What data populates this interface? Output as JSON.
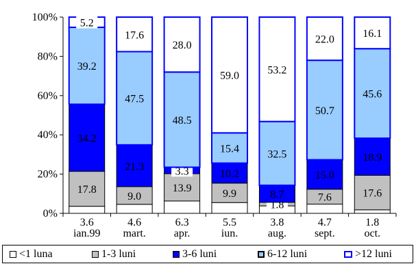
{
  "chart_data": {
    "type": "bar",
    "stacked": true,
    "percent": true,
    "title": "",
    "xlabel": "",
    "ylabel": "",
    "ylim": [
      0,
      100
    ],
    "yticks": [
      "0%",
      "20%",
      "40%",
      "60%",
      "80%",
      "100%"
    ],
    "grid": false,
    "legend_position": "bottom",
    "categories": [
      {
        "top": "3.6",
        "bottom": "ian.99"
      },
      {
        "top": "4.6",
        "bottom": "mart."
      },
      {
        "top": "6.3",
        "bottom": "apr."
      },
      {
        "top": "5.5",
        "bottom": "iun."
      },
      {
        "top": "3.8",
        "bottom": "aug."
      },
      {
        "top": "4.7",
        "bottom": "sept."
      },
      {
        "top": "1.8",
        "bottom": "oct."
      }
    ],
    "series": [
      {
        "name": "<1 luna",
        "color": "#ffffff",
        "border": "#000000",
        "values": [
          3.6,
          4.6,
          6.3,
          5.5,
          3.8,
          4.7,
          1.8
        ]
      },
      {
        "name": "1-3 luni",
        "color": "#c0c0c0",
        "border": "#000000",
        "values": [
          17.8,
          9.0,
          13.9,
          9.9,
          1.8,
          7.6,
          17.6
        ],
        "labels": [
          "17.8",
          "9.0",
          "13.9",
          "9.9",
          "1.8",
          "7.6",
          "17.6"
        ]
      },
      {
        "name": "3-6 luni",
        "color": "#0000ff",
        "border": "#000000",
        "values": [
          34.2,
          21.3,
          3.3,
          10.2,
          8.7,
          15.0,
          18.9
        ],
        "labels": [
          "34.2",
          "21.3",
          "3.3",
          "10.2",
          "8.7",
          "15.0",
          "18.9"
        ]
      },
      {
        "name": "6-12 luni",
        "color": "#99ccff",
        "border": "#0000ff",
        "values": [
          39.2,
          47.5,
          48.5,
          15.4,
          32.5,
          50.7,
          45.6
        ],
        "labels": [
          "39.2",
          "47.5",
          "48.5",
          "15.4",
          "32.5",
          "50.7",
          "45.6"
        ]
      },
      {
        "name": ">12 luni",
        "color": "#ffffff",
        "border": "#0000ff",
        "values": [
          5.2,
          17.6,
          28.0,
          59.0,
          53.2,
          22.0,
          16.1
        ],
        "labels": [
          "5.2",
          "17.6",
          "28.0",
          "59.0",
          "53.2",
          "22.0",
          "16.1"
        ]
      }
    ]
  },
  "legend": [
    {
      "label": "<1 luna",
      "color": "#ffffff",
      "border": "#000000"
    },
    {
      "label": "1-3 luni",
      "color": "#c0c0c0",
      "border": "#000000"
    },
    {
      "label": "3-6 luni",
      "color": "#0000ff",
      "border": "#000000"
    },
    {
      "label": "6-12 luni",
      "color": "#99ccff",
      "border": "#000000"
    },
    {
      "label": ">12 luni",
      "color": "#ffffff",
      "border": "#0000ff"
    }
  ]
}
